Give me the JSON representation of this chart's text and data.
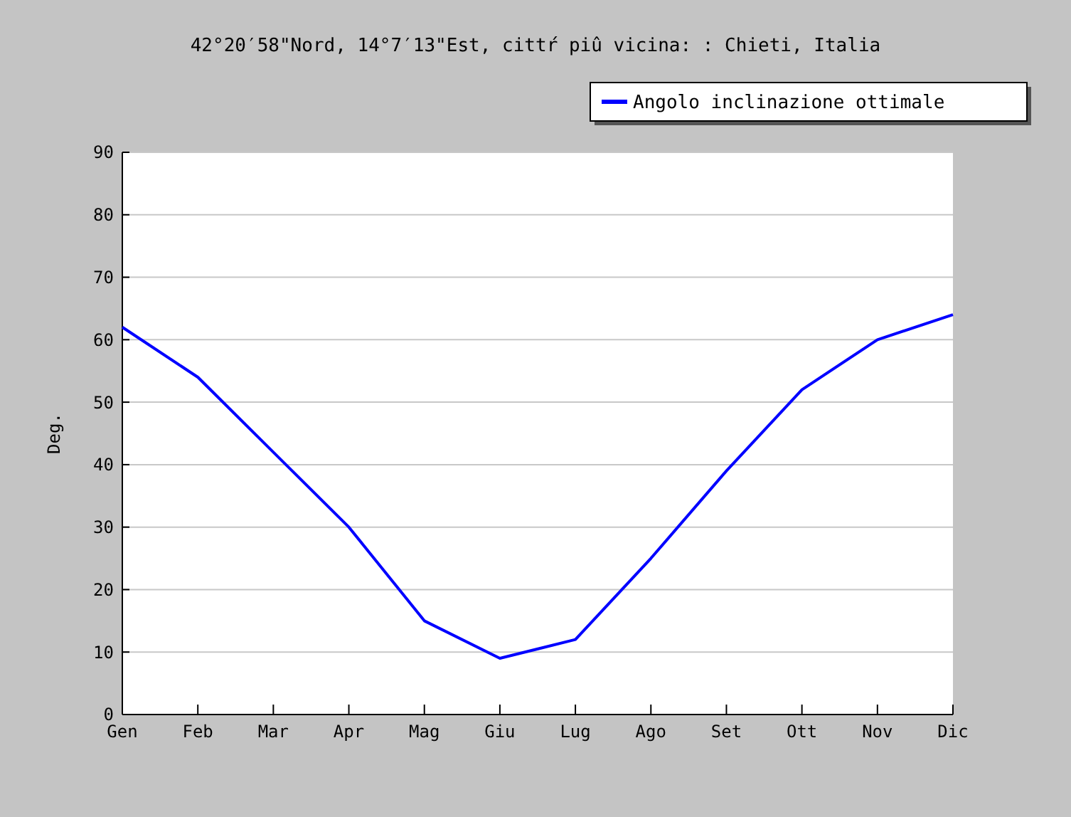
{
  "chart_data": {
    "type": "line",
    "title": "42°20′58\"Nord, 14°7′13\"Est, cittŕ piû vicina: : Chieti, Italia",
    "ylabel": "Deg.",
    "categories": [
      "Gen",
      "Feb",
      "Mar",
      "Apr",
      "Mag",
      "Giu",
      "Lug",
      "Ago",
      "Set",
      "Ott",
      "Nov",
      "Dic"
    ],
    "series": [
      {
        "name": "Angolo inclinazione ottimale",
        "color": "#0000ff",
        "values": [
          62,
          54,
          42,
          30,
          15,
          9,
          12,
          25,
          39,
          52,
          60,
          64
        ]
      }
    ],
    "ylim": [
      0,
      90
    ],
    "yticks": [
      0,
      10,
      20,
      30,
      40,
      50,
      60,
      70,
      80,
      90
    ],
    "grid": "y",
    "legend": "top right"
  }
}
